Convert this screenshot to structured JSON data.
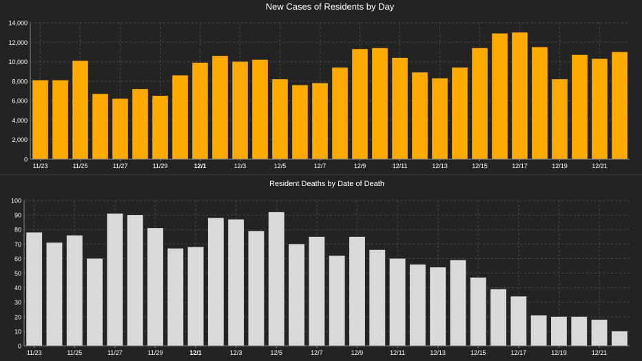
{
  "colors": {
    "background": "#232323",
    "cases_bar": "#FFAA00",
    "deaths_bar": "#D9D9D9",
    "axis_text": "#FFFFFF",
    "grid": "#4a4a4a"
  },
  "chart_data": [
    {
      "type": "bar",
      "title": "New Cases of Residents by Day",
      "xlabel": "",
      "ylabel": "",
      "ylim": [
        0,
        14000
      ],
      "yticks": [
        "0",
        "2,000",
        "4,000",
        "6,000",
        "8,000",
        "10,000",
        "12,000",
        "14,000"
      ],
      "grid": true,
      "tick_labels": [
        "11/23",
        "11/25",
        "11/27",
        "11/29",
        "12/1",
        "12/3",
        "12/5",
        "12/7",
        "12/9",
        "12/11",
        "12/13",
        "12/15",
        "12/17",
        "12/19",
        "12/21"
      ],
      "categories": [
        "11/23",
        "11/24",
        "11/25",
        "11/26",
        "11/27",
        "11/28",
        "11/29",
        "11/30",
        "12/1",
        "12/2",
        "12/3",
        "12/4",
        "12/5",
        "12/6",
        "12/7",
        "12/8",
        "12/9",
        "12/10",
        "12/11",
        "12/12",
        "12/13",
        "12/14",
        "12/15",
        "12/16",
        "12/17",
        "12/18",
        "12/19",
        "12/20",
        "12/21",
        "12/22"
      ],
      "values": [
        8100,
        8100,
        10100,
        6700,
        6200,
        7200,
        6500,
        8600,
        9900,
        10600,
        10000,
        10200,
        8200,
        7600,
        7800,
        9400,
        11300,
        11400,
        10400,
        8900,
        8300,
        9400,
        11400,
        12900,
        13000,
        11500,
        8200,
        10700,
        10300,
        11000
      ]
    },
    {
      "type": "bar",
      "title": "Resident Deaths by Date of Death",
      "xlabel": "",
      "ylabel": "",
      "ylim": [
        0,
        100
      ],
      "yticks": [
        "0",
        "10",
        "20",
        "30",
        "40",
        "50",
        "60",
        "70",
        "80",
        "90",
        "100"
      ],
      "grid": true,
      "tick_labels": [
        "11/23",
        "11/25",
        "11/27",
        "11/29",
        "12/1",
        "12/3",
        "12/5",
        "12/7",
        "12/9",
        "12/11",
        "12/13",
        "12/15",
        "12/17",
        "12/19",
        "12/21"
      ],
      "categories": [
        "11/23",
        "11/24",
        "11/25",
        "11/26",
        "11/27",
        "11/28",
        "11/29",
        "11/30",
        "12/1",
        "12/2",
        "12/3",
        "12/4",
        "12/5",
        "12/6",
        "12/7",
        "12/8",
        "12/9",
        "12/10",
        "12/11",
        "12/12",
        "12/13",
        "12/14",
        "12/15",
        "12/16",
        "12/17",
        "12/18",
        "12/19",
        "12/20",
        "12/21",
        "12/22"
      ],
      "values": [
        78,
        71,
        76,
        60,
        91,
        90,
        81,
        67,
        68,
        88,
        87,
        79,
        92,
        70,
        75,
        62,
        75,
        66,
        60,
        56,
        54,
        59,
        47,
        39,
        34,
        21,
        20,
        20,
        18,
        10
      ]
    }
  ]
}
